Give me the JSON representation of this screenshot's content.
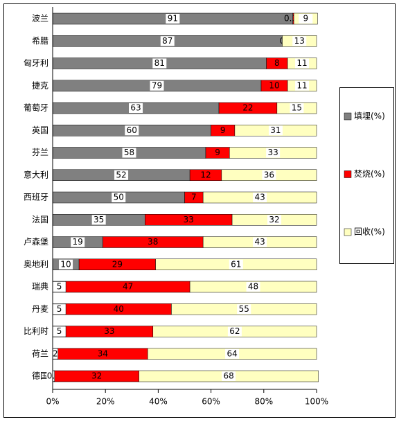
{
  "chart_data": {
    "type": "stacked-bar-horizontal",
    "categories": [
      "波兰",
      "希腊",
      "匈牙利",
      "捷克",
      "葡萄牙",
      "英国",
      "芬兰",
      "意大利",
      "西班牙",
      "法国",
      "卢森堡",
      "奥地利",
      "瑞典",
      "丹麦",
      "比利时",
      "荷兰",
      "德国"
    ],
    "series": [
      {
        "name": "填埋(%)",
        "color": "#808080",
        "values": [
          91,
          87,
          81,
          79,
          63,
          60,
          58,
          52,
          50,
          35,
          19,
          10,
          5,
          5,
          5,
          2,
          0.7
        ]
      },
      {
        "name": "焚烧(%)",
        "color": "#ff0000",
        "values": [
          0.37,
          0,
          8,
          10,
          22,
          9,
          9,
          12,
          7,
          33,
          38,
          29,
          47,
          40,
          33,
          34,
          32
        ]
      },
      {
        "name": "回收(%)",
        "color": "#ffffc0",
        "values": [
          9,
          13,
          11,
          11,
          15,
          31,
          33,
          36,
          43,
          32,
          43,
          61,
          48,
          55,
          62,
          64,
          68
        ]
      }
    ],
    "xlim": [
      0,
      100
    ],
    "xticks": [
      {
        "value": 0,
        "label": "0%"
      },
      {
        "value": 20,
        "label": "20%"
      },
      {
        "value": 40,
        "label": "40%"
      },
      {
        "value": 60,
        "label": "60%"
      },
      {
        "value": 80,
        "label": "80%"
      },
      {
        "value": 100,
        "label": "100%"
      }
    ],
    "legend": "right"
  }
}
